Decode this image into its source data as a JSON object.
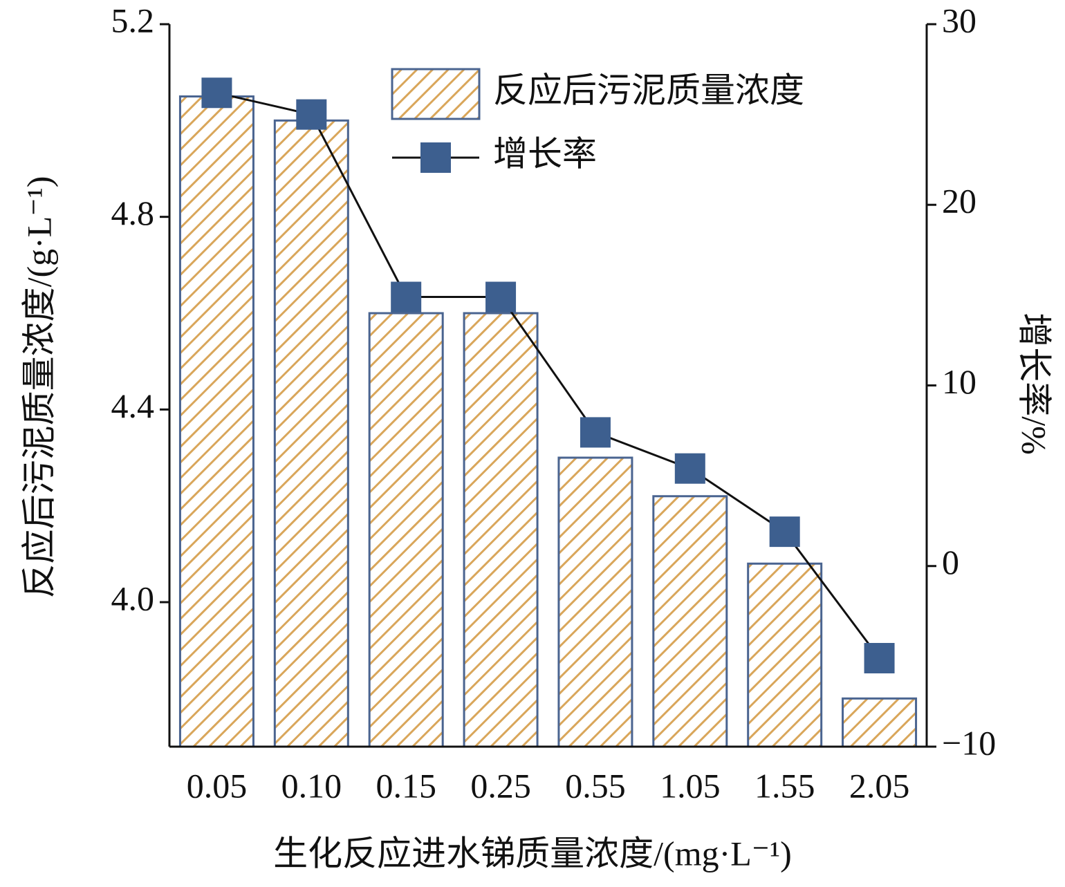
{
  "chart_data": {
    "type": "combo",
    "x_label": "生化反应进水锑质量浓度/(mg·L⁻¹)",
    "y_label": "反应后污泥质量浓度/(g·L⁻¹)",
    "y2_label": "增长率/%",
    "categories": [
      "0.05",
      "0.10",
      "0.15",
      "0.25",
      "0.55",
      "1.05",
      "1.55",
      "2.05"
    ],
    "series": [
      {
        "name": "反应后污泥质量浓度",
        "type": "bar",
        "color": "#d9a65a",
        "values": [
          5.05,
          5.0,
          4.6,
          4.6,
          4.3,
          4.22,
          4.08,
          3.8
        ]
      },
      {
        "name": "增长率",
        "type": "line",
        "axis": "y2",
        "color": "#3d5f8f",
        "values": [
          26.2,
          25.0,
          14.9,
          14.9,
          7.4,
          5.4,
          1.9,
          -5.1
        ]
      }
    ],
    "ylim": [
      3.7,
      5.2
    ],
    "yticks": [
      {
        "value": 4,
        "label": "4.0"
      },
      4.4,
      4.8,
      5.2
    ],
    "y2lim": [
      -10,
      30
    ],
    "y2ticks": [
      {
        "value": -10,
        "label": "−10"
      },
      0,
      10,
      20,
      30
    ],
    "legend": "upper-right"
  }
}
